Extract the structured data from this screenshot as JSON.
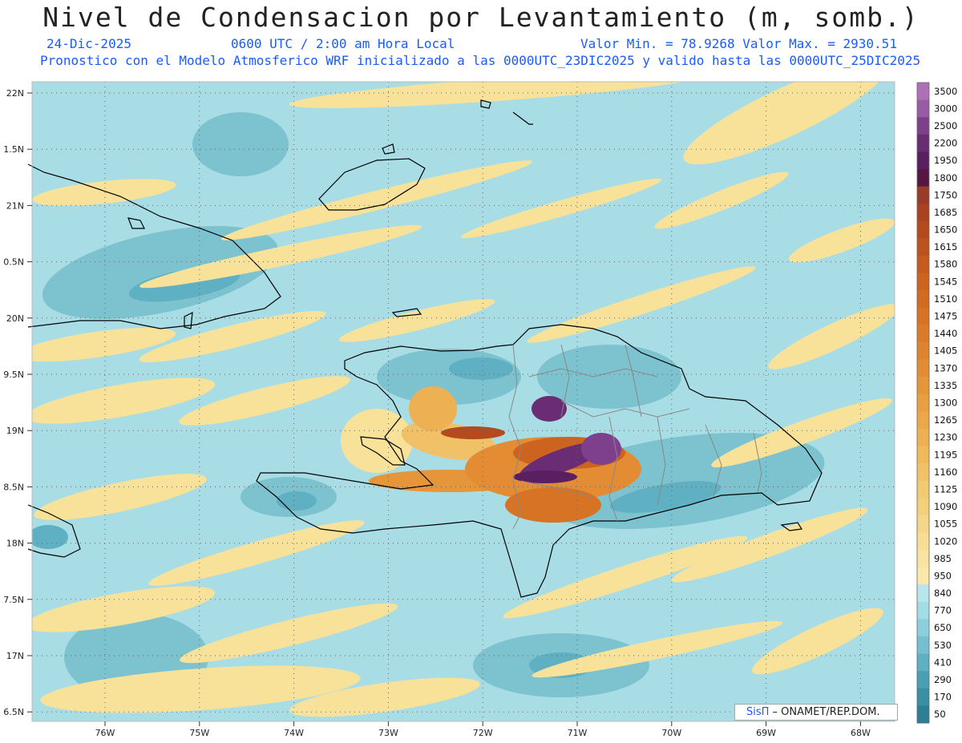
{
  "header": {
    "title": "Nivel de Condensacion por Levantamiento (m, somb.)",
    "date": "24-Dic-2025",
    "time": "0600 UTC / 2:00 am Hora Local",
    "stats": "Valor Min. = 78.9268  Valor Max. = 2930.51",
    "forecast": "Pronostico con el Modelo Atmosferico WRF inicializado a las 0000UTC_23DIC2025 y valido hasta las  0000UTC_25DIC2025"
  },
  "axes": {
    "lat_labels": [
      "22N",
      "1.5N",
      "21N",
      "0.5N",
      "20N",
      "9.5N",
      "19N",
      "8.5N",
      "18N",
      "7.5N",
      "17N",
      "6.5N"
    ],
    "lon_labels": [
      "76W",
      "75W",
      "74W",
      "73W",
      "72W",
      "71W",
      "70W",
      "69W",
      "68W"
    ]
  },
  "colorbar": {
    "labels": [
      "3500",
      "3000",
      "2500",
      "2200",
      "1950",
      "1800",
      "1750",
      "1685",
      "1650",
      "1615",
      "1580",
      "1545",
      "1510",
      "1475",
      "1440",
      "1405",
      "1370",
      "1335",
      "1300",
      "1265",
      "1230",
      "1195",
      "1160",
      "1125",
      "1090",
      "1055",
      "1020",
      "985",
      "950",
      "840",
      "770",
      "650",
      "530",
      "410",
      "290",
      "170",
      "50"
    ],
    "colors": [
      "#b070b8",
      "#9a5aa6",
      "#7e3f8c",
      "#6a2c75",
      "#5a1f60",
      "#571742",
      "#9a3a28",
      "#a8421f",
      "#b44a1d",
      "#bd531c",
      "#c55b1d",
      "#cc631f",
      "#d26b22",
      "#d77325",
      "#db7b29",
      "#df842e",
      "#e38c33",
      "#e69539",
      "#e99e40",
      "#eba748",
      "#edb052",
      "#efb95c",
      "#f1c167",
      "#f3c972",
      "#f4d07d",
      "#f6d789",
      "#f8dd95",
      "#f9e3a0",
      "#fae9ac",
      "#b8e6ee",
      "#a4dce6",
      "#8ccfdc",
      "#74c0d0",
      "#5fb0c3",
      "#4b9fb4",
      "#3a8ea6",
      "#2e7e98"
    ]
  },
  "credit": {
    "sis": "SisΠ",
    "text": " – ONAMET/REP.DOM."
  },
  "map_data": {
    "background_color": "#a8dde6",
    "grid": "dotted",
    "lon_range": [
      "76.6W",
      "67.6W"
    ],
    "lat_range": [
      "6.3N",
      "22.1N"
    ]
  }
}
